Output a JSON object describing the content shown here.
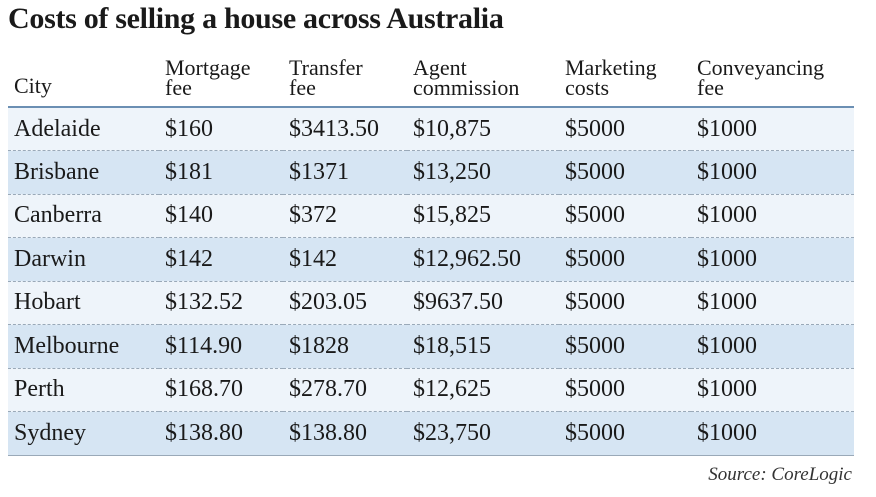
{
  "title": "Costs of selling a house across Australia",
  "source": "Source: CoreLogic",
  "chart_data": {
    "type": "table",
    "title": "Costs of selling a house across Australia",
    "columns": [
      {
        "line1": "City",
        "line2": ""
      },
      {
        "line1": "Mortgage",
        "line2": "fee"
      },
      {
        "line1": "Transfer",
        "line2": "fee"
      },
      {
        "line1": "Agent",
        "line2": "commission"
      },
      {
        "line1": "Marketing",
        "line2": "costs"
      },
      {
        "line1": "Conveyancing",
        "line2": "fee"
      }
    ],
    "rows": [
      [
        "Adelaide",
        "$160",
        "$3413.50",
        "$10,875",
        "$5000",
        "$1000"
      ],
      [
        "Brisbane",
        "$181",
        "$1371",
        "$13,250",
        "$5000",
        "$1000"
      ],
      [
        "Canberra",
        "$140",
        "$372",
        "$15,825",
        "$5000",
        "$1000"
      ],
      [
        "Darwin",
        "$142",
        "$142",
        "$12,962.50",
        "$5000",
        "$1000"
      ],
      [
        "Hobart",
        "$132.52",
        "$203.05",
        "$9637.50",
        "$5000",
        "$1000"
      ],
      [
        "Melbourne",
        "$114.90",
        "$1828",
        "$18,515",
        "$5000",
        "$1000"
      ],
      [
        "Perth",
        "$168.70",
        "$278.70",
        "$12,625",
        "$5000",
        "$1000"
      ],
      [
        "Sydney",
        "$138.80",
        "$138.80",
        "$23,750",
        "$5000",
        "$1000"
      ]
    ],
    "source": "Source: CoreLogic"
  },
  "colors": {
    "row_shade": "#d6e5f3",
    "row_light": "#eef4fa",
    "header_rule": "#6b8fb3"
  }
}
